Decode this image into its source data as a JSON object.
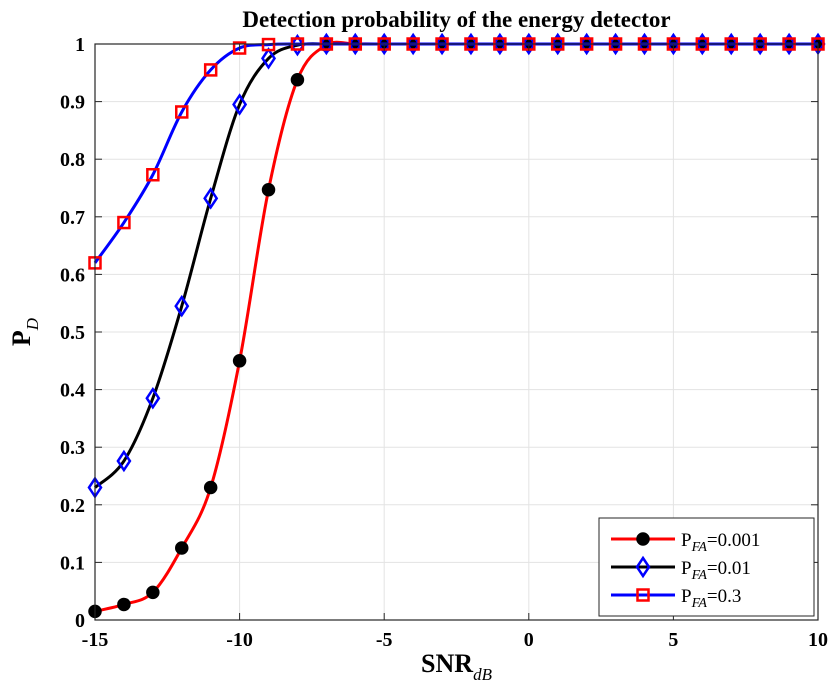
{
  "chart_data": {
    "type": "line",
    "title": "Detection probability of the energy detector",
    "xlabel": {
      "main": "SNR",
      "sub": "dB"
    },
    "ylabel": {
      "main": "P",
      "sub": "D"
    },
    "xlim": [
      -15,
      10
    ],
    "ylim": [
      0,
      1
    ],
    "xticks": [
      "-15",
      "-10",
      "-5",
      "0",
      "5",
      "10"
    ],
    "yticks": [
      "0",
      "0.1",
      "0.2",
      "0.3",
      "0.4",
      "0.5",
      "0.6",
      "0.7",
      "0.8",
      "0.9",
      "1"
    ],
    "grid": true,
    "legend_position": "bottom-right",
    "x": [
      -15,
      -14,
      -13,
      -12,
      -11,
      -10,
      -9,
      -8,
      -7,
      -6,
      -5,
      -4,
      -3,
      -2,
      -1,
      0,
      1,
      2,
      3,
      4,
      5,
      6,
      7,
      8,
      9,
      10
    ],
    "series": [
      {
        "label_main": "P",
        "label_sub": "FA",
        "label_rest": "=0.001",
        "line_color": "#ff0000",
        "marker": "circle",
        "marker_edge": "#000000",
        "marker_fill": "#000000",
        "values": [
          0.015,
          0.027,
          0.048,
          0.125,
          0.23,
          0.45,
          0.747,
          0.938,
          0.998,
          1,
          1,
          1,
          1,
          1,
          1,
          1,
          1,
          1,
          1,
          1,
          1,
          1,
          1,
          1,
          1,
          1
        ]
      },
      {
        "label_main": "P",
        "label_sub": "FA",
        "label_rest": "=0.01",
        "line_color": "#000000",
        "marker": "diamond",
        "marker_edge": "#0000ff",
        "marker_fill": "none",
        "values": [
          0.23,
          0.276,
          0.385,
          0.545,
          0.732,
          0.895,
          0.975,
          0.998,
          1,
          1,
          1,
          1,
          1,
          1,
          1,
          1,
          1,
          1,
          1,
          1,
          1,
          1,
          1,
          1,
          1,
          1
        ]
      },
      {
        "label_main": "P",
        "label_sub": "FA",
        "label_rest": "=0.3",
        "line_color": "#0000ff",
        "marker": "square",
        "marker_edge": "#ff0000",
        "marker_fill": "none",
        "values": [
          0.62,
          0.69,
          0.773,
          0.882,
          0.955,
          0.993,
          0.999,
          1,
          1,
          1,
          1,
          1,
          1,
          1,
          1,
          1,
          1,
          1,
          1,
          1,
          1,
          1,
          1,
          1,
          1,
          1
        ]
      }
    ]
  }
}
